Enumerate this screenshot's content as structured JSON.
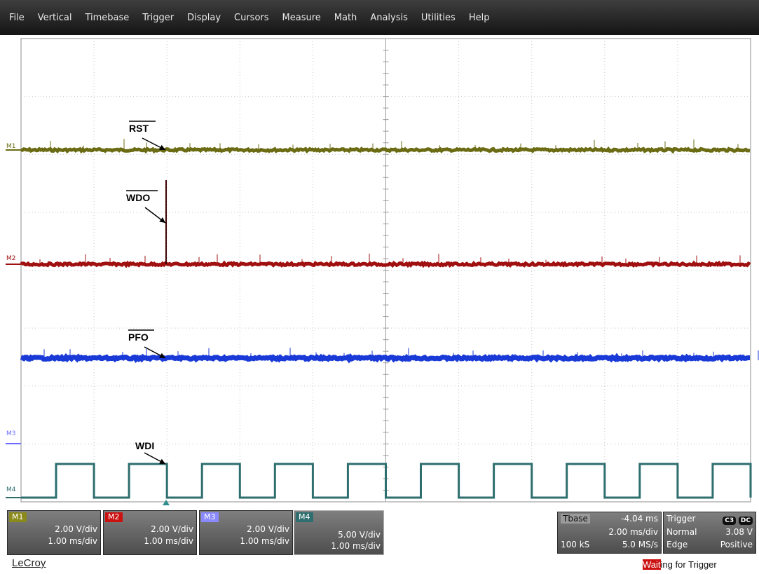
{
  "menu": [
    "File",
    "Vertical",
    "Timebase",
    "Trigger",
    "Display",
    "Cursors",
    "Measure",
    "Math",
    "Analysis",
    "Utilities",
    "Help"
  ],
  "traces": {
    "m1": {
      "label": "M1",
      "color": "#6b6b14"
    },
    "m2": {
      "label": "M2",
      "color": "#a01010"
    },
    "m3": {
      "label": "M3",
      "color": "#6b6bff"
    },
    "m4": {
      "label": "M4",
      "color": "#2e6e6e"
    },
    "pfo_color": "#1a3ad8"
  },
  "annotations": {
    "rst": "RST",
    "wdo": "WDO",
    "pfo": "PFO",
    "wdi": "WDI"
  },
  "channels": [
    {
      "tag": "M1",
      "tag_color": "#8a8a1a",
      "vdiv": "2.00 V/div",
      "tdiv": "1.00 ms/div"
    },
    {
      "tag": "M2",
      "tag_color": "#cc1111",
      "vdiv": "2.00 V/div",
      "tdiv": "1.00 ms/div"
    },
    {
      "tag": "M3",
      "tag_color": "#8a8aff",
      "vdiv": "2.00 V/div",
      "tdiv": "1.00 ms/div"
    },
    {
      "tag": "M4",
      "tag_color": "#2e6e6e",
      "vdiv": "5.00 V/div",
      "tdiv": "1.00 ms/div"
    }
  ],
  "timebase": {
    "label": "Tbase",
    "delay": "-4.04 ms",
    "tdiv": "2.00 ms/div",
    "samples": "100 kS",
    "rate": "5.0 MS/s"
  },
  "trigger": {
    "label": "Trigger",
    "source": "C3",
    "coupling": "DC",
    "mode": "Normal",
    "level": "3.08 V",
    "type": "Edge",
    "slope": "Positive"
  },
  "brand": "LeCroy",
  "status": {
    "highlight": "Wait",
    "rest": "ing for Trigger"
  }
}
